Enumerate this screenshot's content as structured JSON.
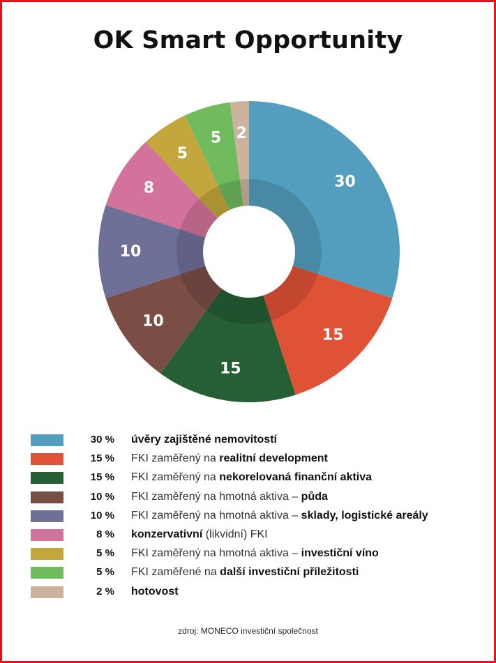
{
  "chart_data": {
    "type": "pie",
    "title": "OK Smart Opportunity",
    "categories": [
      "úvěry zajištěné nemovitostí",
      "FKI zaměřený na realitní development",
      "FKI zaměřený na nekorelovaná finanční aktiva",
      "FKI zaměřený na hmotná aktiva – půda",
      "FKI zaměřený na hmotná aktiva – sklady, logistické areály",
      "konzervativní (likvidní) FKI",
      "FKI zaměřený na hmotná aktiva – investiční víno",
      "FKI zaměřené na další investiční příležitosti",
      "hotovost"
    ],
    "values": [
      30,
      15,
      15,
      10,
      10,
      8,
      5,
      5,
      2
    ],
    "value_labels": [
      "30",
      "15",
      "15",
      "10",
      "10",
      "8",
      "5",
      "5",
      "2"
    ],
    "colors": [
      "#539ebf",
      "#e05236",
      "#275f35",
      "#7a4d45",
      "#6f7098",
      "#d3739b",
      "#c4a73c",
      "#6fbb5e",
      "#cdb39d"
    ],
    "legend_placement": "bottom",
    "legend": [
      {
        "pct": "30 %",
        "parts": [
          {
            "t": "úvěry zajištěné nemovitostí",
            "b": true
          }
        ]
      },
      {
        "pct": "15 %",
        "parts": [
          {
            "t": "FKI zaměřený na ",
            "b": false
          },
          {
            "t": "realitní development",
            "b": true
          }
        ]
      },
      {
        "pct": "15 %",
        "parts": [
          {
            "t": "FKI zaměřený na ",
            "b": false
          },
          {
            "t": "nekorelovaná finanční aktiva",
            "b": true
          }
        ]
      },
      {
        "pct": "10 %",
        "parts": [
          {
            "t": "FKI zaměřený na hmotná aktiva – ",
            "b": false
          },
          {
            "t": "půda",
            "b": true
          }
        ]
      },
      {
        "pct": "10 %",
        "parts": [
          {
            "t": "FKI zaměřený na hmotná aktiva – ",
            "b": false
          },
          {
            "t": "sklady, logistické areály",
            "b": true
          }
        ]
      },
      {
        "pct": "8 %",
        "parts": [
          {
            "t": "konzervativní",
            "b": true
          },
          {
            "t": " (likvidní) FKI",
            "b": false
          }
        ]
      },
      {
        "pct": "5 %",
        "parts": [
          {
            "t": "FKI zaměřený na hmotná aktiva – ",
            "b": false
          },
          {
            "t": "investiční víno",
            "b": true
          }
        ]
      },
      {
        "pct": "5 %",
        "parts": [
          {
            "t": "FKI zaměřené na ",
            "b": false
          },
          {
            "t": "další investiční příležitosti",
            "b": true
          }
        ]
      },
      {
        "pct": "2 %",
        "parts": [
          {
            "t": "hotovost",
            "b": true
          }
        ]
      }
    ],
    "source": "zdroj: MONECO investiční společnost"
  },
  "frame_color": "#e8131a"
}
